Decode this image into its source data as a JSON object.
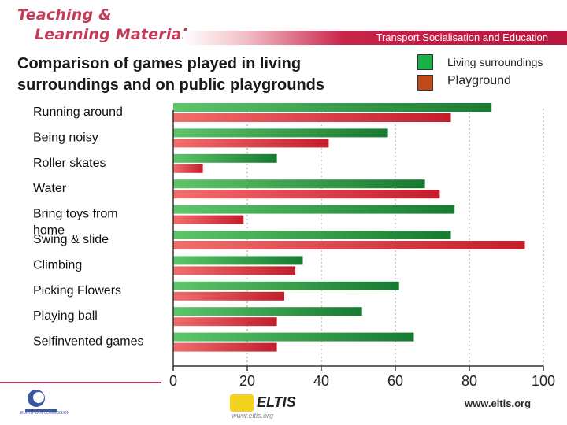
{
  "brand": {
    "line1": "Teaching &",
    "line2": "Learning Materials"
  },
  "header": {
    "banner_text": "Transport Socialisation and Education"
  },
  "chart_data": {
    "type": "bar",
    "orientation": "horizontal",
    "title": "Comparison of games played in living surroundings and on public playgrounds",
    "categories": [
      "Running around",
      "Being noisy",
      "Roller skates",
      "Water",
      "Bring toys from home",
      "Swing & slide",
      "Climbing",
      "Picking Flowers",
      "Playing ball",
      "Selfinvented games"
    ],
    "series": [
      {
        "name": "Living surroundings",
        "color": "#1f8a3a",
        "values": [
          86,
          58,
          28,
          68,
          76,
          75,
          35,
          61,
          51,
          65
        ]
      },
      {
        "name": "Playground",
        "color": "#d92b35",
        "values": [
          75,
          42,
          8,
          72,
          19,
          95,
          33,
          30,
          28,
          28
        ]
      }
    ],
    "xlim": [
      0,
      100
    ],
    "xticks": [
      0,
      20,
      40,
      60,
      80,
      100
    ],
    "grid": "vertical-dotted",
    "legend": "top-right"
  },
  "footer": {
    "url": "www.eltis.org",
    "logo2_text": "ELTIS",
    "logo2_sub": "www.eltis.org",
    "logo1_text": "EUROPEAN COMMISSION"
  },
  "colors": {
    "brand": "#c53b57",
    "banner": "#c8244a"
  }
}
